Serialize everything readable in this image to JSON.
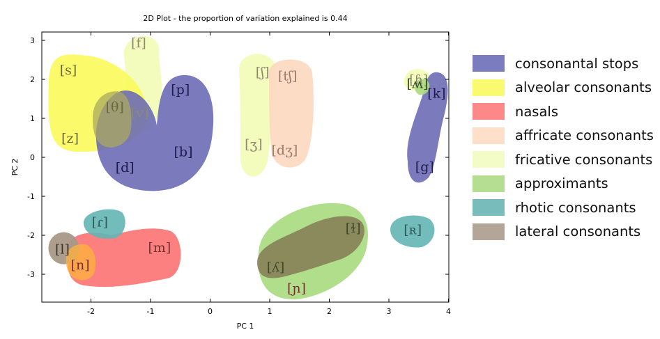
{
  "chart_data": {
    "type": "scatter",
    "title": "2D Plot - the proportion of variation explained is 0.44",
    "xlabel": "PC 1",
    "ylabel": "PC 2",
    "xlim": [
      -2.85,
      4.0
    ],
    "ylim": [
      -3.75,
      3.3
    ],
    "xticks": [
      -2,
      -1,
      0,
      1,
      2,
      3,
      4
    ],
    "yticks": [
      -3,
      -2,
      -1,
      0,
      1,
      2,
      3
    ],
    "grid": false,
    "legend_position": "right",
    "groups": [
      {
        "name": "fricative consonants",
        "color": "#f2fcb6",
        "points": [
          {
            "label": "[f]",
            "x": -1.2,
            "y": 2.95
          },
          {
            "label": "[v]",
            "x": -1.18,
            "y": 1.15
          },
          {
            "label": "[ʃ]",
            "x": 0.88,
            "y": 2.2
          },
          {
            "label": "[ʒ]",
            "x": 0.73,
            "y": 0.35
          },
          {
            "label": "[ɦ]",
            "x": 3.5,
            "y": 2.0
          }
        ]
      },
      {
        "name": "alveolar consonants",
        "color": "#fafa5a",
        "points": [
          {
            "label": "[s]",
            "x": -2.38,
            "y": 2.25
          },
          {
            "label": "[z]",
            "x": -2.35,
            "y": 0.5
          },
          {
            "label": "[θ]",
            "x": -1.6,
            "y": 1.3
          }
        ]
      },
      {
        "name": "consonantal stops",
        "color": "#6b6bb5",
        "points": [
          {
            "label": "[p]",
            "x": -0.5,
            "y": 1.75
          },
          {
            "label": "[b]",
            "x": -0.45,
            "y": 0.15
          },
          {
            "label": "[d]",
            "x": -1.43,
            "y": -0.25
          },
          {
            "label": "[k]",
            "x": 3.8,
            "y": 1.65
          },
          {
            "label": "[g]",
            "x": 3.6,
            "y": -0.23
          }
        ]
      },
      {
        "name": "affricate consonants",
        "color": "#fdd8bf",
        "points": [
          {
            "label": "[tʃ]",
            "x": 1.3,
            "y": 2.1
          },
          {
            "label": "[dʒ]",
            "x": 1.25,
            "y": 0.2
          }
        ]
      },
      {
        "name": "nasals",
        "color": "#fc7272",
        "points": [
          {
            "label": "[m]",
            "x": -0.85,
            "y": -2.3
          },
          {
            "label": "[ɲ]",
            "x": 1.45,
            "y": -3.35
          },
          {
            "label": "[n]",
            "x": -2.18,
            "y": -2.75
          }
        ]
      },
      {
        "name": "approximants",
        "color": "#a9da7e",
        "points": [
          {
            "label": "[ʎ]",
            "x": 1.1,
            "y": -2.8
          },
          {
            "label": "[ɫ]",
            "x": 2.4,
            "y": -1.8
          },
          {
            "label": "[ʍ]",
            "x": 3.48,
            "y": 1.9
          }
        ]
      },
      {
        "name": "rhotic consonants",
        "color": "#63b5b5",
        "points": [
          {
            "label": "[ɾ]",
            "x": -1.85,
            "y": -1.65
          },
          {
            "label": "[ʀ]",
            "x": 3.4,
            "y": -1.85
          }
        ]
      },
      {
        "name": "lateral consonants",
        "color": "#a99887",
        "points": [
          {
            "label": "[l]",
            "x": -2.48,
            "y": -2.35
          }
        ]
      }
    ]
  },
  "legend": {
    "items": [
      {
        "label": "consonantal stops",
        "color": "#7b7bbf"
      },
      {
        "label": "alveolar consonants",
        "color": "#fafa70"
      },
      {
        "label": "nasals",
        "color": "#fc8888"
      },
      {
        "label": "affricate consonants",
        "color": "#fddfca"
      },
      {
        "label": "fricative consonants",
        "color": "#f3fbc6"
      },
      {
        "label": "approximants",
        "color": "#b5de92"
      },
      {
        "label": "rhotic consonants",
        "color": "#78bcbc"
      },
      {
        "label": "lateral consonants",
        "color": "#b3a597"
      }
    ]
  }
}
